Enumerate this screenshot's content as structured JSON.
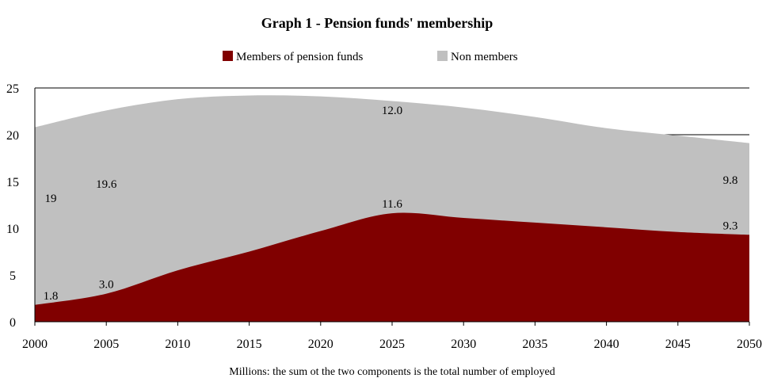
{
  "chart_data": {
    "type": "area",
    "stacked": true,
    "title": "Graph 1 - Pension funds' membership",
    "note": "Millions: the sum ot the two components is the total number of employed",
    "xlabel": "",
    "ylabel": "",
    "x": [
      2000,
      2005,
      2010,
      2015,
      2020,
      2025,
      2030,
      2035,
      2040,
      2045,
      2050
    ],
    "ylim": [
      0,
      25
    ],
    "yticks": [
      0,
      5,
      10,
      15,
      20,
      25
    ],
    "grid": true,
    "legend": "top",
    "series": [
      {
        "name": "Members of pension funds",
        "color": "#800000",
        "values": [
          1.8,
          3.0,
          5.5,
          7.5,
          9.7,
          11.6,
          11.1,
          10.6,
          10.1,
          9.6,
          9.3
        ]
      },
      {
        "name": "Non members",
        "color": "#c0c0c0",
        "values": [
          19.0,
          19.6,
          18.3,
          16.7,
          14.4,
          12.0,
          11.8,
          11.3,
          10.6,
          10.3,
          9.8
        ]
      }
    ],
    "data_labels": [
      {
        "series": 0,
        "x": 2000,
        "text": "1.8"
      },
      {
        "series": 0,
        "x": 2005,
        "text": "3.0"
      },
      {
        "series": 0,
        "x": 2025,
        "text": "11.6"
      },
      {
        "series": 0,
        "x": 2050,
        "text": "9.3"
      },
      {
        "series": 1,
        "x": 2000,
        "text": "19"
      },
      {
        "series": 1,
        "x": 2005,
        "text": "19.6"
      },
      {
        "series": 1,
        "x": 2025,
        "text": "12.0"
      },
      {
        "series": 1,
        "x": 2050,
        "text": "9.8"
      }
    ]
  }
}
